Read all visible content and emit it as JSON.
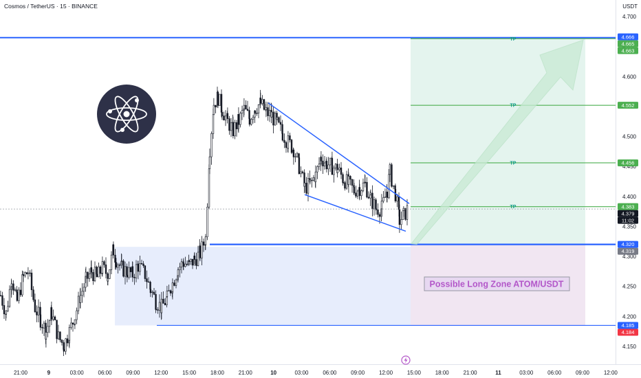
{
  "header": {
    "title": "Cosmos / TetherUS · 15 · BINANCE",
    "currency": "USDT"
  },
  "colors": {
    "up": "#089981",
    "down": "#131722",
    "blue": "#2962ff",
    "tp_green": "#4caf50",
    "zone_blue": "#e3eafc",
    "target_green": "#e4f4ee",
    "target_red": "#f3e4ee",
    "zone_text": "#b357c9",
    "current": "#131722",
    "stop_red": "#f23645",
    "gray": "#787b86"
  },
  "chart_data": {
    "type": "candlestick",
    "title": "Cosmos / TetherUS · 15 · BINANCE",
    "ylabel": "USDT",
    "ylim": [
      4.133,
      4.713
    ],
    "y_ticks": [
      "4.700",
      "4.650",
      "4.600",
      "4.550",
      "4.500",
      "4.450",
      "4.400",
      "4.350",
      "4.300",
      "4.250",
      "4.200",
      "4.150"
    ],
    "x_ticks": [
      {
        "label": "21:00",
        "bold": false
      },
      {
        "label": "9",
        "bold": true
      },
      {
        "label": "03:00",
        "bold": false
      },
      {
        "label": "06:00",
        "bold": false
      },
      {
        "label": "09:00",
        "bold": false
      },
      {
        "label": "12:00",
        "bold": false
      },
      {
        "label": "15:00",
        "bold": false
      },
      {
        "label": "18:00",
        "bold": false
      },
      {
        "label": "21:00",
        "bold": false
      },
      {
        "label": "10",
        "bold": true
      },
      {
        "label": "03:00",
        "bold": false
      },
      {
        "label": "06:00",
        "bold": false
      },
      {
        "label": "09:00",
        "bold": false
      },
      {
        "label": "12:00",
        "bold": false
      },
      {
        "label": "15:00",
        "bold": false
      },
      {
        "label": "18:00",
        "bold": false
      },
      {
        "label": "21:00",
        "bold": false
      },
      {
        "label": "11",
        "bold": true
      },
      {
        "label": "03:00",
        "bold": false
      },
      {
        "label": "06:00",
        "bold": false
      },
      {
        "label": "09:00",
        "bold": false
      },
      {
        "label": "12:00",
        "bold": false
      }
    ],
    "candle_anchors": [
      [
        0,
        4.235
      ],
      [
        8,
        4.205
      ],
      [
        16,
        4.265
      ],
      [
        24,
        4.225
      ],
      [
        33,
        4.265
      ],
      [
        40,
        4.275
      ],
      [
        50,
        4.215
      ],
      [
        58,
        4.195
      ],
      [
        66,
        4.175
      ],
      [
        74,
        4.205
      ],
      [
        84,
        4.165
      ],
      [
        92,
        4.152
      ],
      [
        100,
        4.175
      ],
      [
        108,
        4.2
      ],
      [
        116,
        4.235
      ],
      [
        124,
        4.26
      ],
      [
        132,
        4.275
      ],
      [
        140,
        4.265
      ],
      [
        148,
        4.28
      ],
      [
        156,
        4.27
      ],
      [
        164,
        4.31
      ],
      [
        168,
        4.295
      ],
      [
        176,
        4.28
      ],
      [
        184,
        4.275
      ],
      [
        192,
        4.27
      ],
      [
        200,
        4.285
      ],
      [
        210,
        4.27
      ],
      [
        218,
        4.245
      ],
      [
        226,
        4.225
      ],
      [
        234,
        4.215
      ],
      [
        242,
        4.23
      ],
      [
        250,
        4.255
      ],
      [
        258,
        4.28
      ],
      [
        266,
        4.29
      ],
      [
        274,
        4.285
      ],
      [
        282,
        4.295
      ],
      [
        290,
        4.305
      ],
      [
        298,
        4.33
      ],
      [
        304,
        4.48
      ],
      [
        310,
        4.555
      ],
      [
        316,
        4.565
      ],
      [
        322,
        4.545
      ],
      [
        330,
        4.525
      ],
      [
        338,
        4.51
      ],
      [
        346,
        4.525
      ],
      [
        354,
        4.545
      ],
      [
        362,
        4.53
      ],
      [
        370,
        4.548
      ],
      [
        378,
        4.555
      ],
      [
        386,
        4.54
      ],
      [
        394,
        4.535
      ],
      [
        402,
        4.52
      ],
      [
        410,
        4.505
      ],
      [
        418,
        4.49
      ],
      [
        426,
        4.48
      ],
      [
        434,
        4.45
      ],
      [
        442,
        4.415
      ],
      [
        450,
        4.42
      ],
      [
        458,
        4.435
      ],
      [
        466,
        4.465
      ],
      [
        474,
        4.455
      ],
      [
        482,
        4.45
      ],
      [
        490,
        4.445
      ],
      [
        498,
        4.43
      ],
      [
        506,
        4.42
      ],
      [
        514,
        4.41
      ],
      [
        522,
        4.415
      ],
      [
        530,
        4.42
      ],
      [
        538,
        4.395
      ],
      [
        546,
        4.38
      ],
      [
        554,
        4.38
      ],
      [
        562,
        4.41
      ],
      [
        566,
        4.44
      ],
      [
        574,
        4.405
      ],
      [
        580,
        4.36
      ],
      [
        586,
        4.368
      ],
      [
        592,
        4.379
      ]
    ],
    "current_price": "4.379",
    "countdown": "11:02",
    "levels": {
      "top_line": 4.663,
      "tp_lines": [
        4.663,
        4.552,
        4.456,
        4.383
      ],
      "entry_line": 4.32,
      "zone_bottom": 4.185,
      "zone_top": 4.316
    },
    "price_labels": [
      {
        "value": "4.666",
        "price": 4.666,
        "kind": "blue"
      },
      {
        "value": "4.665",
        "price": 4.6655,
        "kind": "green"
      },
      {
        "value": "4.663",
        "price": 4.663,
        "kind": "green"
      },
      {
        "value": "4.552",
        "price": 4.552,
        "kind": "green"
      },
      {
        "value": "4.456",
        "price": 4.456,
        "kind": "green"
      },
      {
        "value": "4.383",
        "price": 4.383,
        "kind": "green"
      },
      {
        "value": "4.379",
        "price": 4.379,
        "kind": "current"
      },
      {
        "value": "4.320",
        "price": 4.32,
        "kind": "blue"
      },
      {
        "value": "4.319",
        "price": 4.319,
        "kind": "gray"
      },
      {
        "value": "4.185",
        "price": 4.185,
        "kind": "blue"
      },
      {
        "value": "4.184",
        "price": 4.184,
        "kind": "red"
      }
    ],
    "tp_label": "TP",
    "wedge": {
      "upper": [
        [
          4.556,
          4.388
        ]
      ],
      "lower": [
        [
          4.403,
          4.342
        ]
      ]
    },
    "annotations": {
      "zone_label": "Possible Long Zone ATOM/USDT"
    }
  }
}
